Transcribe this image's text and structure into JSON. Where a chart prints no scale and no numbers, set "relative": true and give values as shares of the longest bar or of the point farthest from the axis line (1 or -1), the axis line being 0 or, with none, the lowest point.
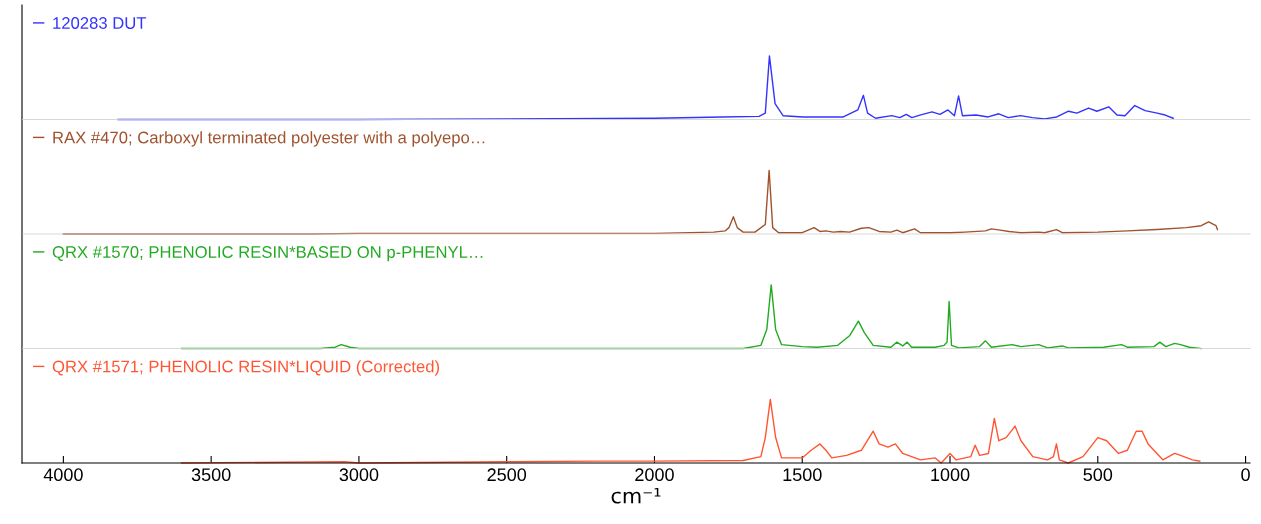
{
  "chart_data": [
    {
      "type": "line",
      "relative": true,
      "legend": "top left",
      "grid": false,
      "tick_labels": false,
      "xlim": [
        4140,
        -15
      ],
      "xticks": [
        4000,
        3500,
        3000,
        2500,
        2000,
        1500,
        1000,
        500,
        0
      ],
      "series": [
        {
          "name": "120283 DUT",
          "color": "#3333ff",
          "x": [
            3815,
            3000,
            2500,
            2000,
            1769,
            1646,
            1625,
            1611,
            1592,
            1565,
            1497,
            1361,
            1312,
            1293,
            1279,
            1252,
            1197,
            1170,
            1148,
            1129,
            1102,
            1061,
            1034,
            1007,
            985,
            971,
            958,
            912,
            871,
            835,
            803,
            762,
            721,
            680,
            639,
            599,
            571,
            531,
            503,
            463,
            435,
            408,
            375,
            340,
            299,
            272,
            245
          ],
          "values": [
            0,
            0,
            0.01,
            0.02,
            0.04,
            0.05,
            0.1,
            1.0,
            0.25,
            0.06,
            0.04,
            0.04,
            0.15,
            0.38,
            0.1,
            0.02,
            0.06,
            0.03,
            0.08,
            0.03,
            0.07,
            0.12,
            0.08,
            0.15,
            0.06,
            0.37,
            0.06,
            0.07,
            0.04,
            0.09,
            0.03,
            0.06,
            0.03,
            0.01,
            0.04,
            0.13,
            0.1,
            0.18,
            0.13,
            0.2,
            0.07,
            0.06,
            0.22,
            0.14,
            0.1,
            0.07,
            0.02
          ]
        }
      ]
    },
    {
      "type": "line",
      "relative": true,
      "legend": "top left",
      "grid": false,
      "tick_labels": false,
      "xlim": [
        4140,
        -15
      ],
      "xticks": [
        4000,
        3500,
        3000,
        2500,
        2000,
        1500,
        1000,
        500,
        0
      ],
      "series": [
        {
          "name": "RAX #470; Carboxyl terminated polyester with a polyepo…",
          "color": "#a0522d",
          "x": [
            4000,
            3160,
            3000,
            2000,
            1800,
            1760,
            1748,
            1733,
            1720,
            1700,
            1660,
            1625,
            1612,
            1600,
            1580,
            1500,
            1460,
            1440,
            1420,
            1395,
            1370,
            1340,
            1300,
            1275,
            1240,
            1200,
            1180,
            1160,
            1120,
            1100,
            1000,
            950,
            880,
            860,
            830,
            800,
            760,
            700,
            680,
            640,
            620,
            500,
            400,
            300,
            200,
            150,
            125,
            100,
            95
          ],
          "values": [
            0,
            0,
            0.01,
            0.01,
            0.03,
            0.05,
            0.1,
            0.27,
            0.1,
            0.03,
            0.03,
            0.15,
            1.0,
            0.1,
            0.02,
            0.02,
            0.1,
            0.04,
            0.05,
            0.03,
            0.04,
            0.03,
            0.09,
            0.1,
            0.04,
            0.03,
            0.06,
            0.02,
            0.08,
            0.02,
            0.02,
            0.03,
            0.05,
            0.08,
            0.06,
            0.04,
            0.02,
            0.03,
            0.02,
            0.07,
            0.02,
            0.03,
            0.05,
            0.07,
            0.1,
            0.13,
            0.19,
            0.13,
            0.07
          ]
        }
      ]
    },
    {
      "type": "line",
      "relative": true,
      "legend": "top left",
      "grid": false,
      "tick_labels": false,
      "xlim": [
        4140,
        -15
      ],
      "xticks": [
        4000,
        3500,
        3000,
        2500,
        2000,
        1500,
        1000,
        500,
        0
      ],
      "series": [
        {
          "name": "QRX #1570; PHENOLIC RESIN*BASED ON p-PHENYL…",
          "color": "#22aa22",
          "x": [
            3600,
            3130,
            3080,
            3060,
            3030,
            3000,
            1700,
            1640,
            1620,
            1605,
            1590,
            1570,
            1500,
            1450,
            1380,
            1340,
            1310,
            1290,
            1260,
            1200,
            1180,
            1160,
            1145,
            1130,
            1050,
            1020,
            1010,
            1003,
            995,
            970,
            900,
            880,
            860,
            790,
            760,
            700,
            670,
            620,
            600,
            480,
            420,
            400,
            310,
            290,
            270,
            240,
            220,
            190,
            150
          ],
          "values": [
            0,
            0,
            0.02,
            0.06,
            0.02,
            0,
            0,
            0.05,
            0.3,
            1.0,
            0.3,
            0.06,
            0.03,
            0.02,
            0.05,
            0.2,
            0.43,
            0.25,
            0.05,
            0.02,
            0.1,
            0.04,
            0.1,
            0.02,
            0.02,
            0.05,
            0.1,
            0.74,
            0.05,
            0.01,
            0.03,
            0.12,
            0.02,
            0.06,
            0.03,
            0.06,
            0.01,
            0.04,
            0.01,
            0.02,
            0.06,
            0.02,
            0.03,
            0.1,
            0.03,
            0.08,
            0.06,
            0.02,
            0
          ]
        }
      ]
    },
    {
      "type": "line",
      "relative": true,
      "legend": "top left",
      "grid": false,
      "tick_labels": "x",
      "xlabel": "cm⁻¹",
      "xlim": [
        4140,
        -15
      ],
      "xticks": [
        4000,
        3500,
        3000,
        2500,
        2000,
        1500,
        1000,
        500,
        0
      ],
      "series": [
        {
          "name": "QRX #1571; PHENOLIC RESIN*LIQUID (Corrected)",
          "color": "#ff5533",
          "x": [
            3600,
            3050,
            3000,
            2500,
            2200,
            2000,
            1700,
            1640,
            1625,
            1608,
            1590,
            1570,
            1500,
            1470,
            1440,
            1420,
            1400,
            1350,
            1300,
            1260,
            1240,
            1210,
            1185,
            1160,
            1100,
            1050,
            1030,
            1000,
            980,
            930,
            915,
            900,
            870,
            850,
            835,
            810,
            780,
            760,
            720,
            670,
            650,
            640,
            630,
            600,
            550,
            500,
            470,
            430,
            400,
            370,
            350,
            330,
            280,
            240,
            220,
            180,
            155
          ],
          "values": [
            0,
            0.02,
            0,
            0.02,
            0.03,
            0.03,
            0.04,
            0.1,
            0.4,
            1.0,
            0.4,
            0.08,
            0.08,
            0.2,
            0.3,
            0.2,
            0.08,
            0.12,
            0.2,
            0.5,
            0.3,
            0.25,
            0.3,
            0.15,
            0.05,
            0.08,
            0.0,
            0.15,
            0.05,
            0.1,
            0.28,
            0.12,
            0.15,
            0.7,
            0.35,
            0.4,
            0.58,
            0.35,
            0.1,
            0.05,
            0.1,
            0.3,
            0.05,
            0.0,
            0.1,
            0.4,
            0.35,
            0.15,
            0.2,
            0.5,
            0.5,
            0.3,
            0.05,
            0.15,
            0.12,
            0.05,
            0.03
          ]
        }
      ]
    }
  ]
}
